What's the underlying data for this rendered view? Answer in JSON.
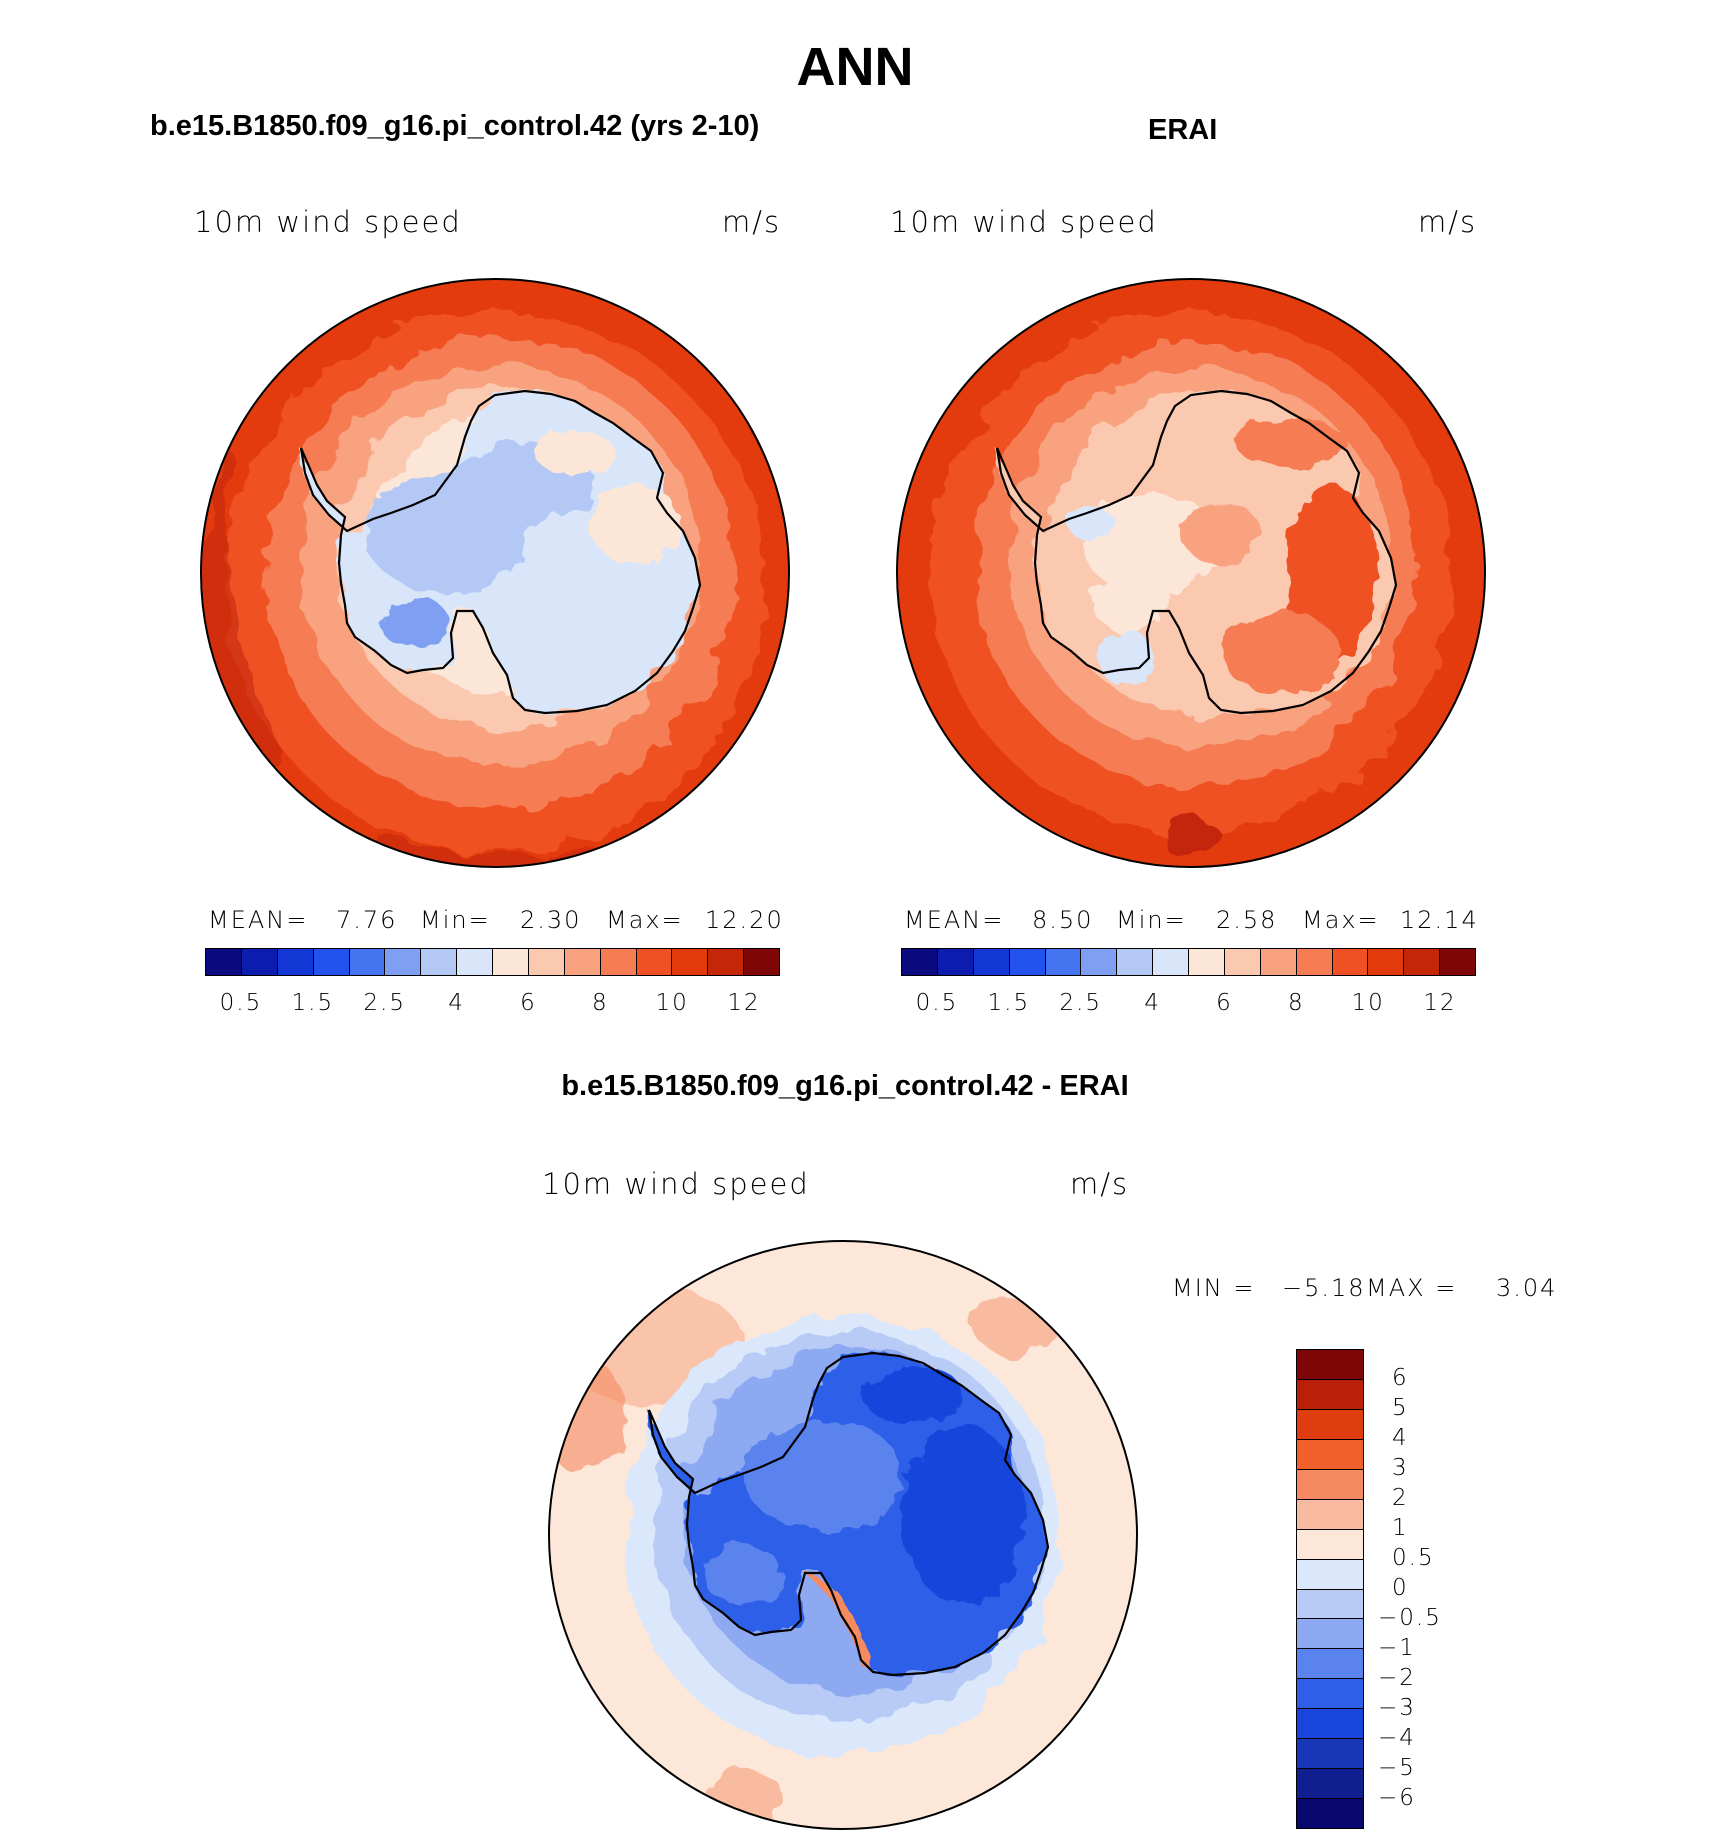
{
  "title": "ANN",
  "colors": {
    "abs_scale": [
      "#0b0a7e",
      "#0b1cae",
      "#1338d6",
      "#2353ee",
      "#4474ef",
      "#7e9ff2",
      "#b4c8f5",
      "#d9e6fa",
      "#fbe6d8",
      "#fbc8b0",
      "#f9a27f",
      "#f57c53",
      "#ef5124",
      "#e33a0c",
      "#c32707",
      "#7f0607"
    ],
    "diff_scale": [
      "#7f0607",
      "#b92007",
      "#df3d0f",
      "#f2602c",
      "#f58a61",
      "#f9bb9f",
      "#fce7d9",
      "#dbe8fb",
      "#b7cbf6",
      "#8da9f2",
      "#5a83ee",
      "#2f5ee8",
      "#1845dc",
      "#1736b8",
      "#0f1f90",
      "#08086e"
    ]
  },
  "panels": {
    "model": {
      "case_title": "b.e15.B1850.f09_g16.pi_control.42 (yrs 2-10)",
      "variable": "10m  wind  speed",
      "units": "m/s",
      "stats": {
        "mean_label": "MEAN=",
        "mean": "7.76",
        "min_label": "Min=",
        "min": "2.30",
        "max_label": "Max=",
        "max": "12.20"
      }
    },
    "obs": {
      "case_title": "ERAI",
      "variable": "10m  wind  speed",
      "units": "m/s",
      "stats": {
        "mean_label": "MEAN=",
        "mean": "8.50",
        "min_label": "Min=",
        "min": "2.58",
        "max_label": "Max=",
        "max": "12.14"
      }
    },
    "diff": {
      "case_title": "b.e15.B1850.f09_g16.pi_control.42 - ERAI",
      "variable": "10m  wind  speed",
      "units": "m/s",
      "stats": {
        "min_label": "MIN =",
        "min": "−5.18",
        "max_label": "MAX =",
        "max": "3.04"
      }
    }
  },
  "abs_colorbar_ticks": [
    "0.5",
    "1.5",
    "2.5",
    "4",
    "6",
    "8",
    "10",
    "12"
  ],
  "diff_colorbar_ticks": [
    "6",
    "5",
    "4",
    "3",
    "2",
    "1",
    "0.5",
    "0",
    "−0.5",
    "−1",
    "−2",
    "−3",
    "−4",
    "−5",
    "−6"
  ]
}
